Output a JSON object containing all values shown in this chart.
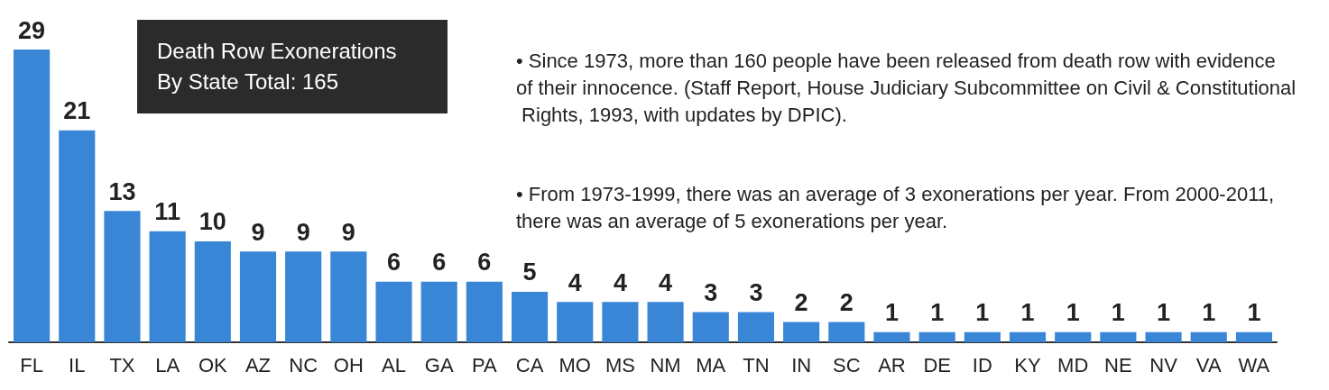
{
  "chart_data": {
    "type": "bar",
    "data_labels": true,
    "title": "Death Row Exonerations By State Total: 165",
    "categories": [
      "FL",
      "IL",
      "TX",
      "LA",
      "OK",
      "AZ",
      "NC",
      "OH",
      "AL",
      "GA",
      "PA",
      "CA",
      "MO",
      "MS",
      "NM",
      "MA",
      "TN",
      "IN",
      "SC",
      "AR",
      "DE",
      "ID",
      "KY",
      "MD",
      "NE",
      "NV",
      "VA",
      "WA"
    ],
    "values": [
      29,
      21,
      13,
      11,
      10,
      9,
      9,
      9,
      6,
      6,
      6,
      5,
      4,
      4,
      4,
      3,
      3,
      2,
      2,
      1,
      1,
      1,
      1,
      1,
      1,
      1,
      1,
      1
    ],
    "color": "#3a86d6",
    "annotations": [
      "• Since 1973, more than 160 people have been released from death row with evidence of their innocence. (Staff Report, House Judiciary Subcommittee on Civil & Constitutional Rights, 1993, with updates by DPIC).",
      "• From 1973-1999, there was an average of 3 exonerations per year. From 2000-2011, there was an average of 5 exonerations per year."
    ]
  }
}
